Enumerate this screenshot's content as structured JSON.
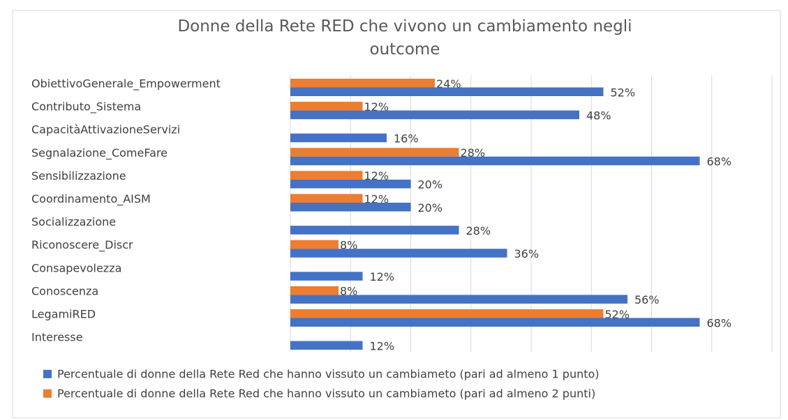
{
  "chart_data": {
    "type": "bar",
    "orientation": "horizontal",
    "title": "Donne della Rete RED che vivono un cambiamento negli outcome",
    "categories": [
      "ObiettivoGenerale_Empowerment",
      "Contributo_Sistema",
      "CapacitàAttivazioneServizi",
      "Segnalazione_ComeFare",
      "Sensibilizzazione",
      "Coordinamento_AISM",
      "Socializzazione",
      "Riconoscere_Discr",
      "Consapevolezza",
      "Conoscenza",
      "LegamiRED",
      "Interesse"
    ],
    "series": [
      {
        "name": "Percentuale di donne della Rete Red che hanno vissuto un cambiameto (pari ad almeno 1 punto)",
        "color": "#4472c4",
        "values": [
          52,
          48,
          16,
          68,
          20,
          20,
          28,
          36,
          12,
          56,
          68,
          12
        ],
        "value_labels": [
          "52%",
          "48%",
          "16%",
          "68%",
          "20%",
          "20%",
          "28%",
          "36%",
          "12%",
          "56%",
          "68%",
          "12%"
        ]
      },
      {
        "name": "Percentuale di donne della Rete Red che hanno vissuto un cambiameto (pari ad almeno 2 punti)",
        "color": "#ed7d31",
        "values": [
          24,
          12,
          null,
          28,
          12,
          12,
          null,
          8,
          null,
          8,
          52,
          null
        ],
        "value_labels": [
          "24%",
          "12%",
          null,
          "28%",
          "12%",
          "12%",
          null,
          "8%",
          null,
          "8%",
          "52%",
          null
        ]
      }
    ],
    "xlim": [
      0,
      80
    ],
    "xticks": [
      0,
      10,
      20,
      30,
      40,
      50,
      60,
      70,
      80
    ],
    "grid": true
  }
}
